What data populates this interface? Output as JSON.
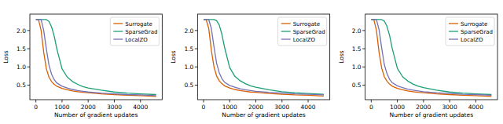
{
  "chart_data": [
    {
      "type": "line",
      "xlabel": "Number of gradient updates",
      "ylabel": "Loss",
      "x": [
        0,
        100,
        200,
        300,
        400,
        500,
        600,
        700,
        800,
        1000,
        1200,
        1400,
        1600,
        1800,
        2000,
        2500,
        3000,
        3500,
        4000,
        4600
      ],
      "series": [
        {
          "name": "Surrogate",
          "color": "#d95f02",
          "values": [
            2.3,
            2.3,
            2.0,
            1.4,
            0.95,
            0.72,
            0.6,
            0.52,
            0.47,
            0.41,
            0.37,
            0.34,
            0.32,
            0.3,
            0.29,
            0.26,
            0.24,
            0.22,
            0.21,
            0.19
          ]
        },
        {
          "name": "SparseGrad",
          "color": "#1b9e77",
          "values": [
            2.3,
            2.3,
            2.3,
            2.3,
            2.3,
            2.25,
            2.1,
            1.85,
            1.5,
            0.95,
            0.72,
            0.6,
            0.52,
            0.46,
            0.42,
            0.36,
            0.31,
            0.28,
            0.26,
            0.24
          ]
        },
        {
          "name": "LocalZO",
          "color": "#7570b3",
          "values": [
            2.3,
            2.3,
            2.3,
            2.0,
            1.5,
            1.05,
            0.8,
            0.65,
            0.56,
            0.47,
            0.42,
            0.38,
            0.35,
            0.33,
            0.31,
            0.28,
            0.26,
            0.24,
            0.23,
            0.21
          ]
        }
      ],
      "xlim": [
        -230,
        4830
      ],
      "ylim": [
        0.1,
        2.45
      ],
      "xticks": [
        0,
        1000,
        2000,
        3000,
        4000
      ],
      "yticks": [
        0.5,
        {
          "value": 1,
          "label": "1.0"
        },
        1.5,
        {
          "value": 2,
          "label": "2.0"
        }
      ],
      "legend": "upper right"
    },
    {
      "type": "line",
      "xlabel": "Number of gradient updates",
      "ylabel": "Loss",
      "x": [
        0,
        100,
        200,
        300,
        400,
        500,
        600,
        700,
        800,
        1000,
        1200,
        1400,
        1600,
        1800,
        2000,
        2500,
        3000,
        3500,
        4000,
        4600
      ],
      "series": [
        {
          "name": "Surrogate",
          "color": "#d95f02",
          "values": [
            2.3,
            2.3,
            2.05,
            1.45,
            1.0,
            0.75,
            0.62,
            0.54,
            0.48,
            0.42,
            0.38,
            0.35,
            0.33,
            0.31,
            0.3,
            0.27,
            0.25,
            0.23,
            0.22,
            0.2
          ]
        },
        {
          "name": "SparseGrad",
          "color": "#1b9e77",
          "values": [
            2.3,
            2.3,
            2.3,
            2.3,
            2.3,
            2.27,
            2.15,
            1.9,
            1.55,
            0.98,
            0.74,
            0.62,
            0.54,
            0.48,
            0.44,
            0.37,
            0.32,
            0.29,
            0.27,
            0.25
          ]
        },
        {
          "name": "LocalZO",
          "color": "#7570b3",
          "values": [
            2.3,
            2.3,
            2.3,
            2.05,
            1.55,
            1.1,
            0.84,
            0.68,
            0.58,
            0.49,
            0.44,
            0.4,
            0.37,
            0.35,
            0.33,
            0.3,
            0.28,
            0.26,
            0.25,
            0.23
          ]
        }
      ],
      "xlim": [
        -230,
        4830
      ],
      "ylim": [
        0.1,
        2.45
      ],
      "xticks": [
        0,
        1000,
        2000,
        3000,
        4000
      ],
      "yticks": [
        0.5,
        {
          "value": 1,
          "label": "1.0"
        },
        1.5,
        {
          "value": 2,
          "label": "2.0"
        }
      ],
      "legend": "upper right"
    },
    {
      "type": "line",
      "xlabel": "Number of gradient updates",
      "ylabel": "Loss",
      "x": [
        0,
        100,
        200,
        300,
        400,
        500,
        600,
        700,
        800,
        1000,
        1200,
        1400,
        1600,
        1800,
        2000,
        2500,
        3000,
        3500,
        4000,
        4600
      ],
      "series": [
        {
          "name": "Surrogate",
          "color": "#d95f02",
          "values": [
            2.3,
            2.3,
            2.0,
            1.4,
            0.97,
            0.73,
            0.61,
            0.53,
            0.47,
            0.41,
            0.37,
            0.34,
            0.32,
            0.3,
            0.29,
            0.26,
            0.24,
            0.22,
            0.21,
            0.19
          ]
        },
        {
          "name": "SparseGrad",
          "color": "#1b9e77",
          "values": [
            2.3,
            2.3,
            2.3,
            2.3,
            2.3,
            2.26,
            2.12,
            1.87,
            1.52,
            0.96,
            0.73,
            0.61,
            0.53,
            0.47,
            0.43,
            0.36,
            0.31,
            0.28,
            0.26,
            0.24
          ]
        },
        {
          "name": "LocalZO",
          "color": "#7570b3",
          "values": [
            2.3,
            2.3,
            2.3,
            2.02,
            1.52,
            1.07,
            0.82,
            0.66,
            0.57,
            0.48,
            0.43,
            0.39,
            0.36,
            0.34,
            0.32,
            0.29,
            0.27,
            0.25,
            0.24,
            0.22
          ]
        }
      ],
      "xlim": [
        -230,
        4830
      ],
      "ylim": [
        0.1,
        2.45
      ],
      "xticks": [
        0,
        1000,
        2000,
        3000,
        4000
      ],
      "yticks": [
        0.5,
        {
          "value": 1,
          "label": "1.0"
        },
        1.5,
        {
          "value": 2,
          "label": "2.0"
        }
      ],
      "legend": "upper right"
    }
  ]
}
